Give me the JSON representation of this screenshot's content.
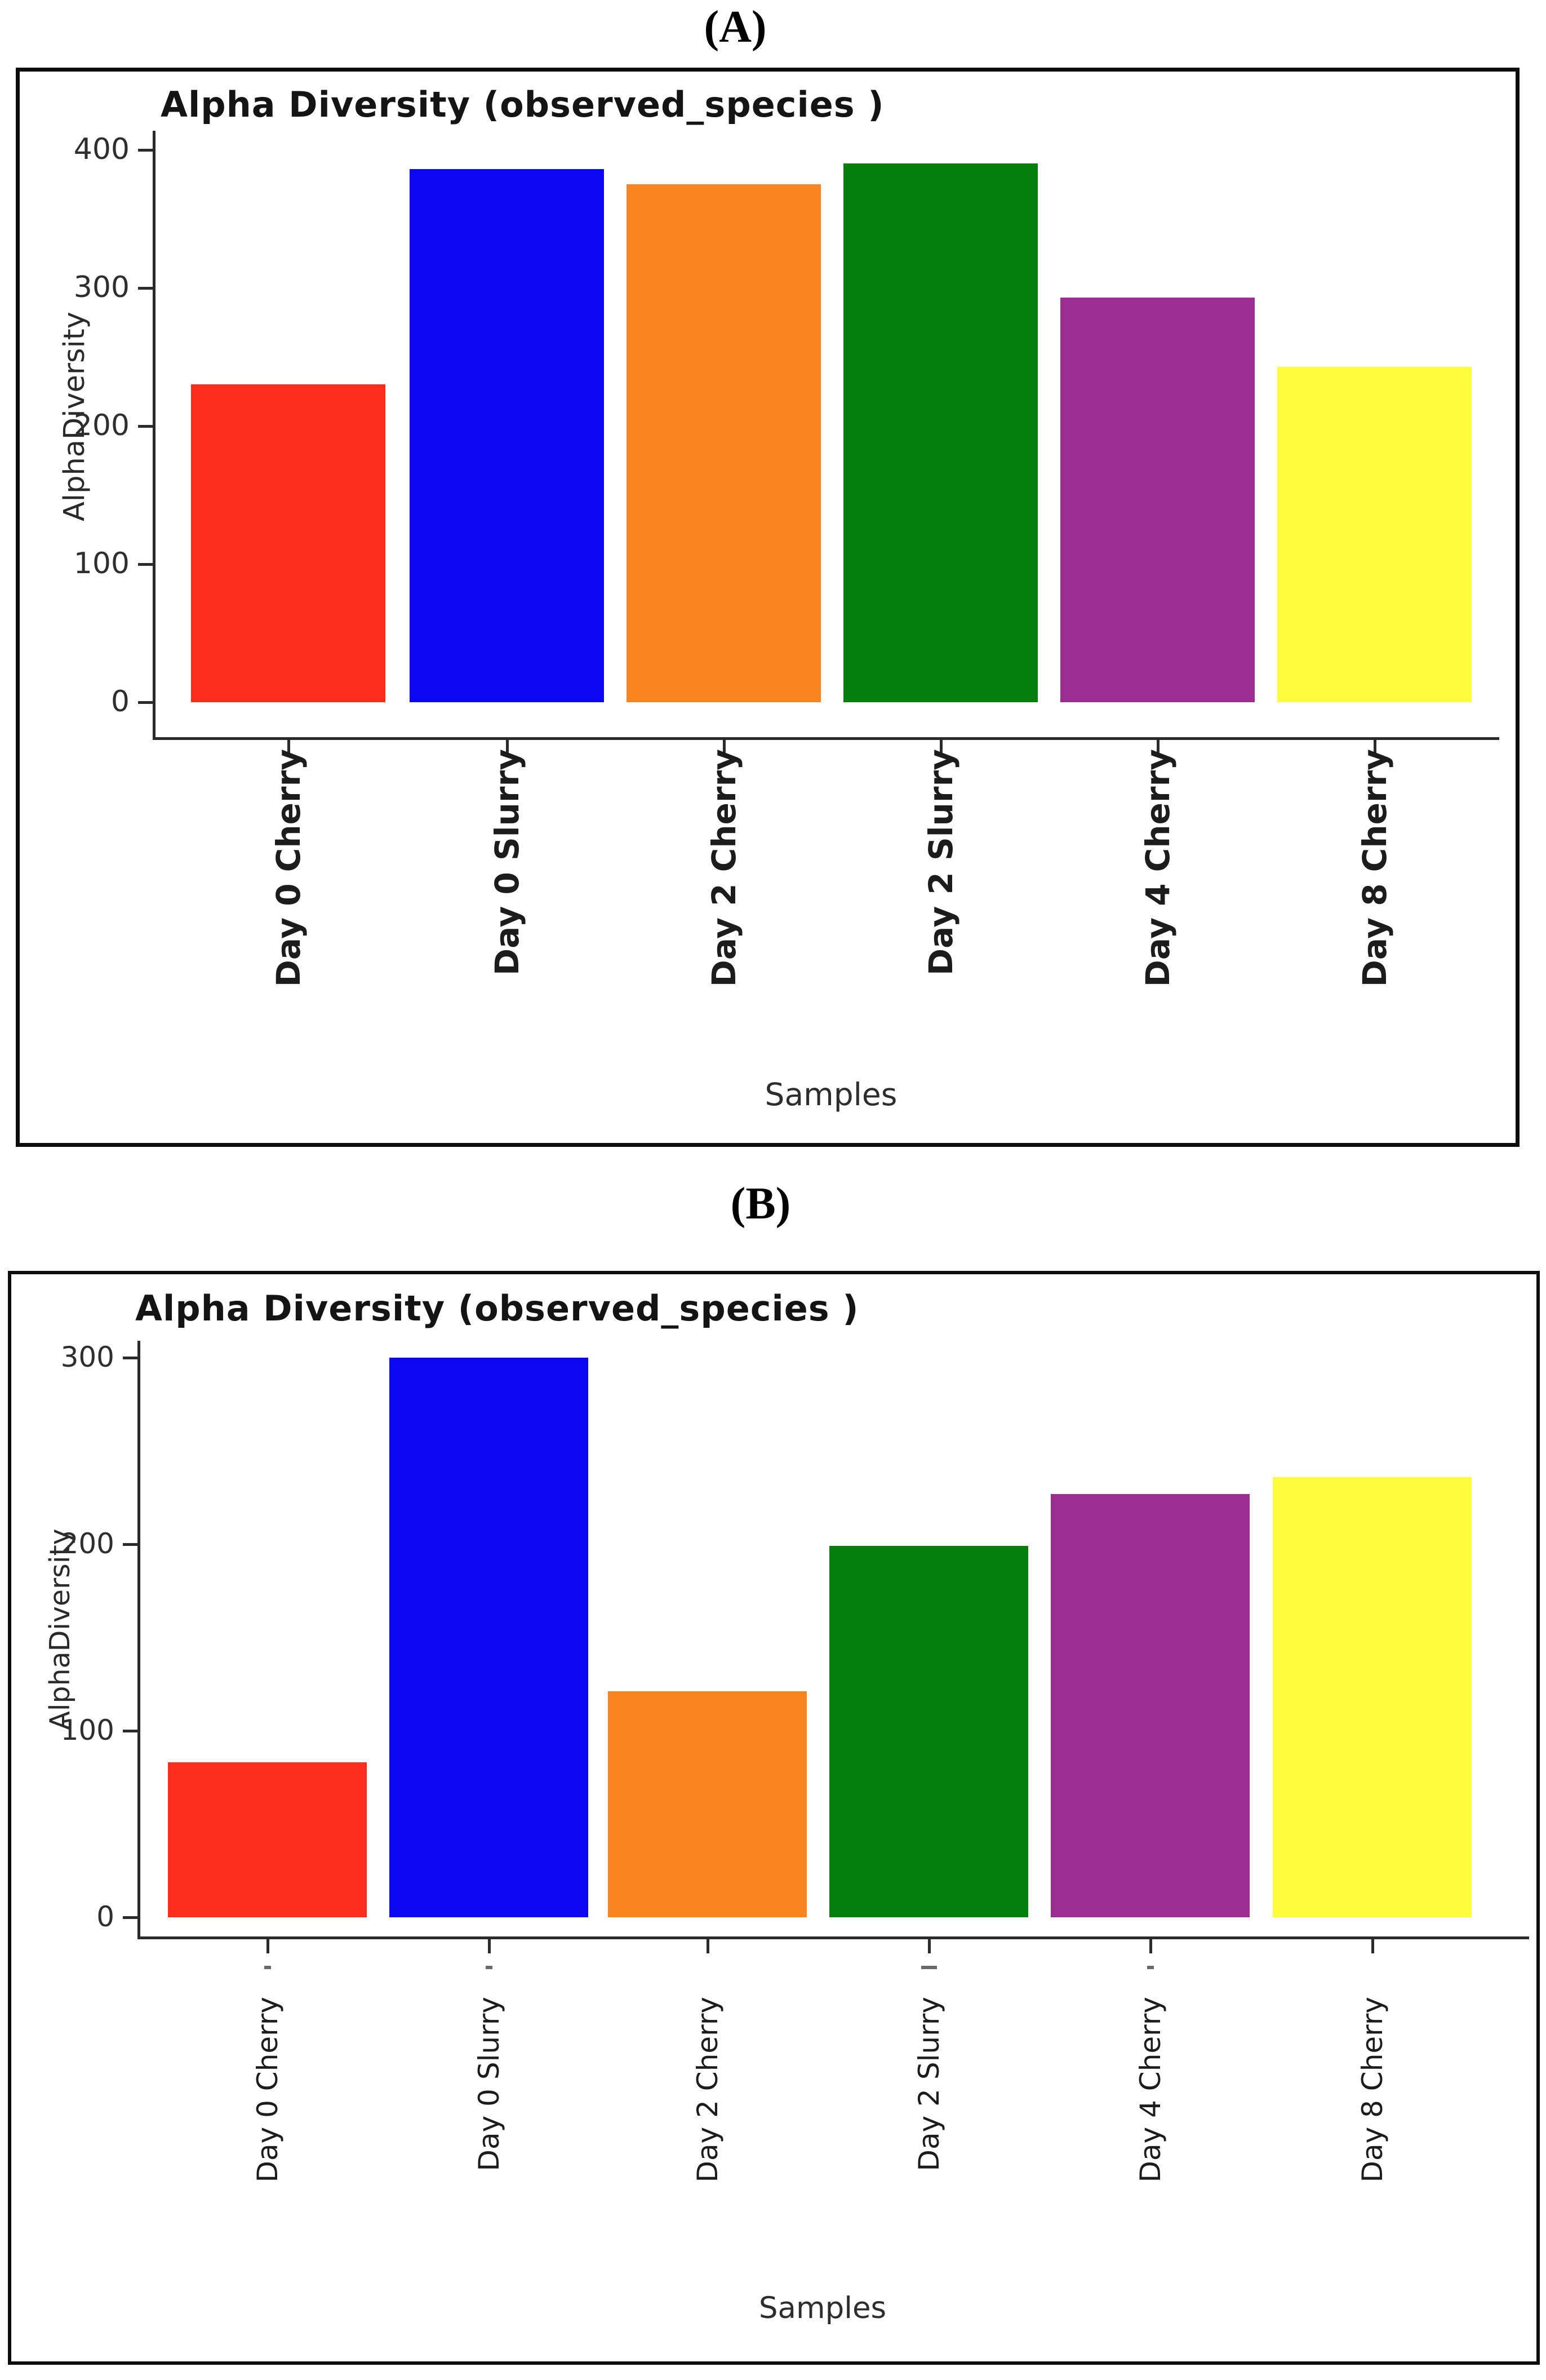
{
  "page": {
    "background": "#ffffff"
  },
  "figure": {
    "panels": [
      {
        "label": "(A)"
      },
      {
        "label": "(B)"
      }
    ]
  },
  "chart_data": [
    {
      "panel": "A",
      "type": "bar",
      "title": "Alpha Diversity (observed_species )",
      "xlabel": "Samples",
      "ylabel": "AlphaDiversity",
      "categories": [
        "Day 0 Cherry",
        "Day 0 Slurry",
        "Day 2 Cherry",
        "Day 2 Slurry",
        "Day 4 Cherry",
        "Day 8 Cherry"
      ],
      "values": [
        230,
        386,
        375,
        390,
        293,
        243
      ],
      "bar_colors": [
        "#fa2d1a",
        "#0b07f2",
        "#f9831d",
        "#047e0c",
        "#9c2d90",
        "#fdfd3b"
      ],
      "yticks": [
        0,
        100,
        200,
        300,
        400
      ],
      "ylim": [
        0,
        414
      ],
      "grid": false,
      "legend": null
    },
    {
      "panel": "B",
      "type": "bar",
      "title": "Alpha Diversity (observed_species )",
      "xlabel": "Samples",
      "ylabel": "AlphaDiversity",
      "categories": [
        "Day 0 Cherry",
        "Day 0 Slurry",
        "Day 2 Cherry",
        "Day 2 Slurry",
        "Day 4 Cherry",
        "Day 8 Cherry"
      ],
      "values": [
        83,
        300,
        121,
        199,
        227,
        236
      ],
      "bar_colors": [
        "#fa2d1a",
        "#0b07f2",
        "#f9831d",
        "#047e0c",
        "#9c2d90",
        "#fdfd3b"
      ],
      "yticks": [
        0,
        100,
        200,
        300
      ],
      "ylim": [
        0,
        308
      ],
      "grid": false,
      "legend": null
    }
  ]
}
